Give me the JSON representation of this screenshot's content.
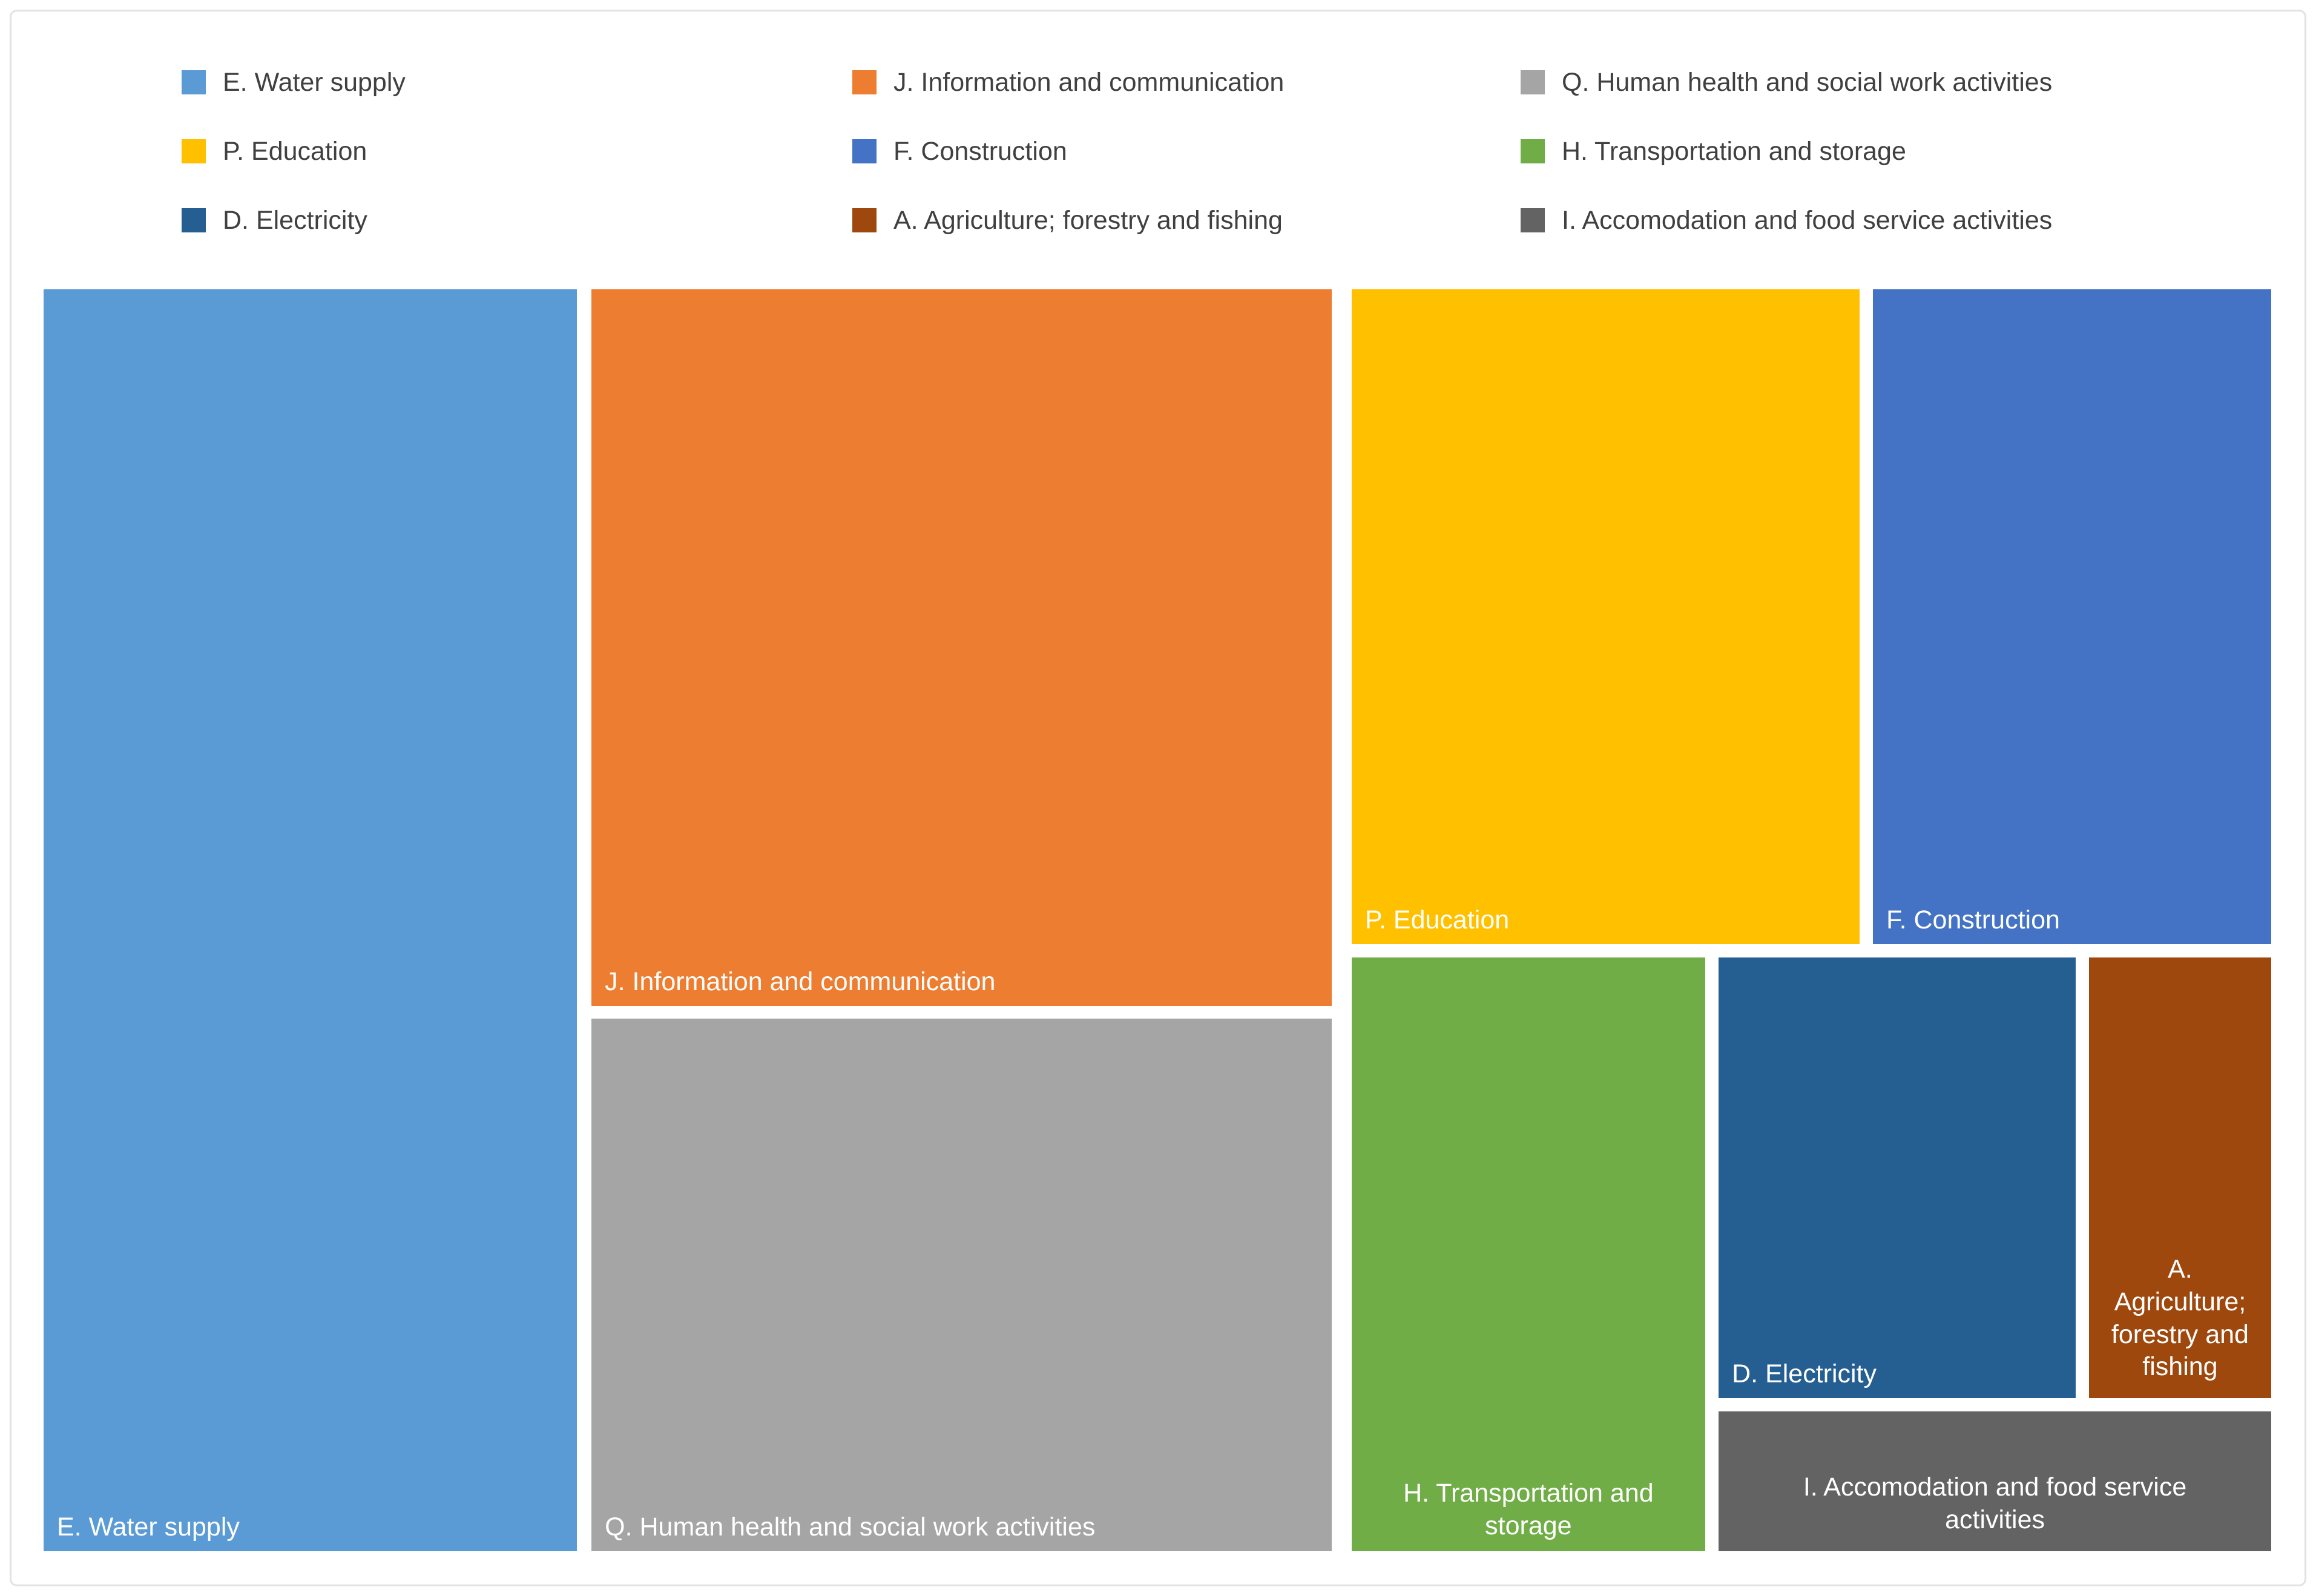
{
  "frame": {
    "border_color": "#e2e2e2",
    "background": "#ffffff"
  },
  "legend": {
    "position": "top",
    "text_color": "#404040",
    "columns": [
      {
        "items": [
          {
            "label": "E. Water supply",
            "color": "#5B9BD5"
          },
          {
            "label": "P. Education",
            "color": "#FFC000"
          },
          {
            "label": "D. Electricity",
            "color": "#255E91"
          }
        ]
      },
      {
        "items": [
          {
            "label": "J. Information and communication",
            "color": "#ED7D31"
          },
          {
            "label": "F. Construction",
            "color": "#4472C4"
          },
          {
            "label": "A. Agriculture; forestry and fishing",
            "color": "#9E480E"
          }
        ]
      },
      {
        "items": [
          {
            "label": "Q. Human health and social work activities",
            "color": "#A5A5A5"
          },
          {
            "label": "H. Transportation and storage",
            "color": "#70AD47"
          },
          {
            "label": "I. Accomodation and food service activities",
            "color": "#636363"
          }
        ]
      }
    ]
  },
  "chart_data": {
    "type": "treemap",
    "title": "",
    "legend_position": "top",
    "label_color": "#FFFFFF",
    "note": "No numeric values are printed on the chart; area_share_est_pct is estimated from tile pixel areas.",
    "tiles": [
      {
        "id": "water-supply",
        "name": "E. Water supply",
        "color": "#5B9BD5",
        "label": "E. Water supply",
        "label_align": "left",
        "x_pct": 0,
        "y_pct": 0,
        "w_pct": 24.15,
        "h_pct": 100,
        "area_share_est_pct": 24.5
      },
      {
        "id": "information-communication",
        "name": "J. Information and communication",
        "color": "#ED7D31",
        "label": "J. Information and communication",
        "label_align": "left",
        "x_pct": 24.53,
        "y_pct": 0,
        "w_pct": 33.41,
        "h_pct": 56.99,
        "area_share_est_pct": 19.3
      },
      {
        "id": "human-health-social-work",
        "name": "Q. Human health and social work activities",
        "color": "#A5A5A5",
        "label": "Q. Human health and social work activities",
        "label_align": "left",
        "x_pct": 24.53,
        "y_pct": 57.52,
        "w_pct": 33.41,
        "h_pct": 42.48,
        "area_share_est_pct": 14.4
      },
      {
        "id": "education",
        "name": "P. Education",
        "color": "#FFC000",
        "label": "P. Education",
        "label_align": "left",
        "x_pct": 58.56,
        "y_pct": 0,
        "w_pct": 23.01,
        "h_pct": 52.12,
        "area_share_est_pct": 12.2
      },
      {
        "id": "construction",
        "name": "F. Construction",
        "color": "#4472C4",
        "label": "F. Construction",
        "label_align": "left",
        "x_pct": 81.9,
        "y_pct": 0,
        "w_pct": 18.1,
        "h_pct": 52.12,
        "area_share_est_pct": 9.6
      },
      {
        "id": "transportation-storage",
        "name": "H. Transportation and storage",
        "color": "#70AD47",
        "label": "H. Transportation and\nstorage",
        "label_align": "center",
        "x_pct": 58.56,
        "y_pct": 52.7,
        "w_pct": 16.1,
        "h_pct": 47.3,
        "area_share_est_pct": 7.7
      },
      {
        "id": "electricity",
        "name": "D. Electricity",
        "color": "#255E91",
        "label": "D. Electricity",
        "label_align": "left",
        "x_pct": 74.99,
        "y_pct": 52.7,
        "w_pct": 16.26,
        "h_pct": 35.23,
        "area_share_est_pct": 5.8
      },
      {
        "id": "agriculture-forestry-fishing",
        "name": "A. Agriculture; forestry and fishing",
        "color": "#9E480E",
        "label": "A.\nAgriculture;\nforestry and\nfishing",
        "label_align": "center",
        "x_pct": 91.57,
        "y_pct": 52.7,
        "w_pct": 8.43,
        "h_pct": 35.23,
        "area_share_est_pct": 3.0
      },
      {
        "id": "accomodation-food-service",
        "name": "I. Accomodation and food service activities",
        "color": "#636363",
        "label": "I. Accomodation and food service\nactivities",
        "label_align": "center",
        "x_pct": 74.99,
        "y_pct": 88.5,
        "w_pct": 25.01,
        "h_pct": 11.5,
        "area_share_est_pct": 2.9
      }
    ]
  }
}
